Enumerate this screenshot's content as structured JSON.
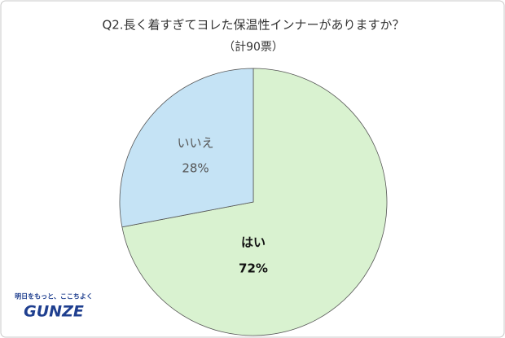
{
  "chart_data": {
    "type": "pie",
    "title": "Q2.長く着すぎてヨレた保温性インナーがありますか？",
    "subtitle": "（計90票）",
    "categories": [
      "はい",
      "いいえ"
    ],
    "values": [
      72,
      28
    ],
    "value_labels": [
      "72%",
      "28%"
    ],
    "colors": [
      "#d9f2d0",
      "#c5e3f5"
    ]
  },
  "logo": {
    "tagline": "明日をもっと、ここちよく",
    "name": "GUNZE"
  }
}
